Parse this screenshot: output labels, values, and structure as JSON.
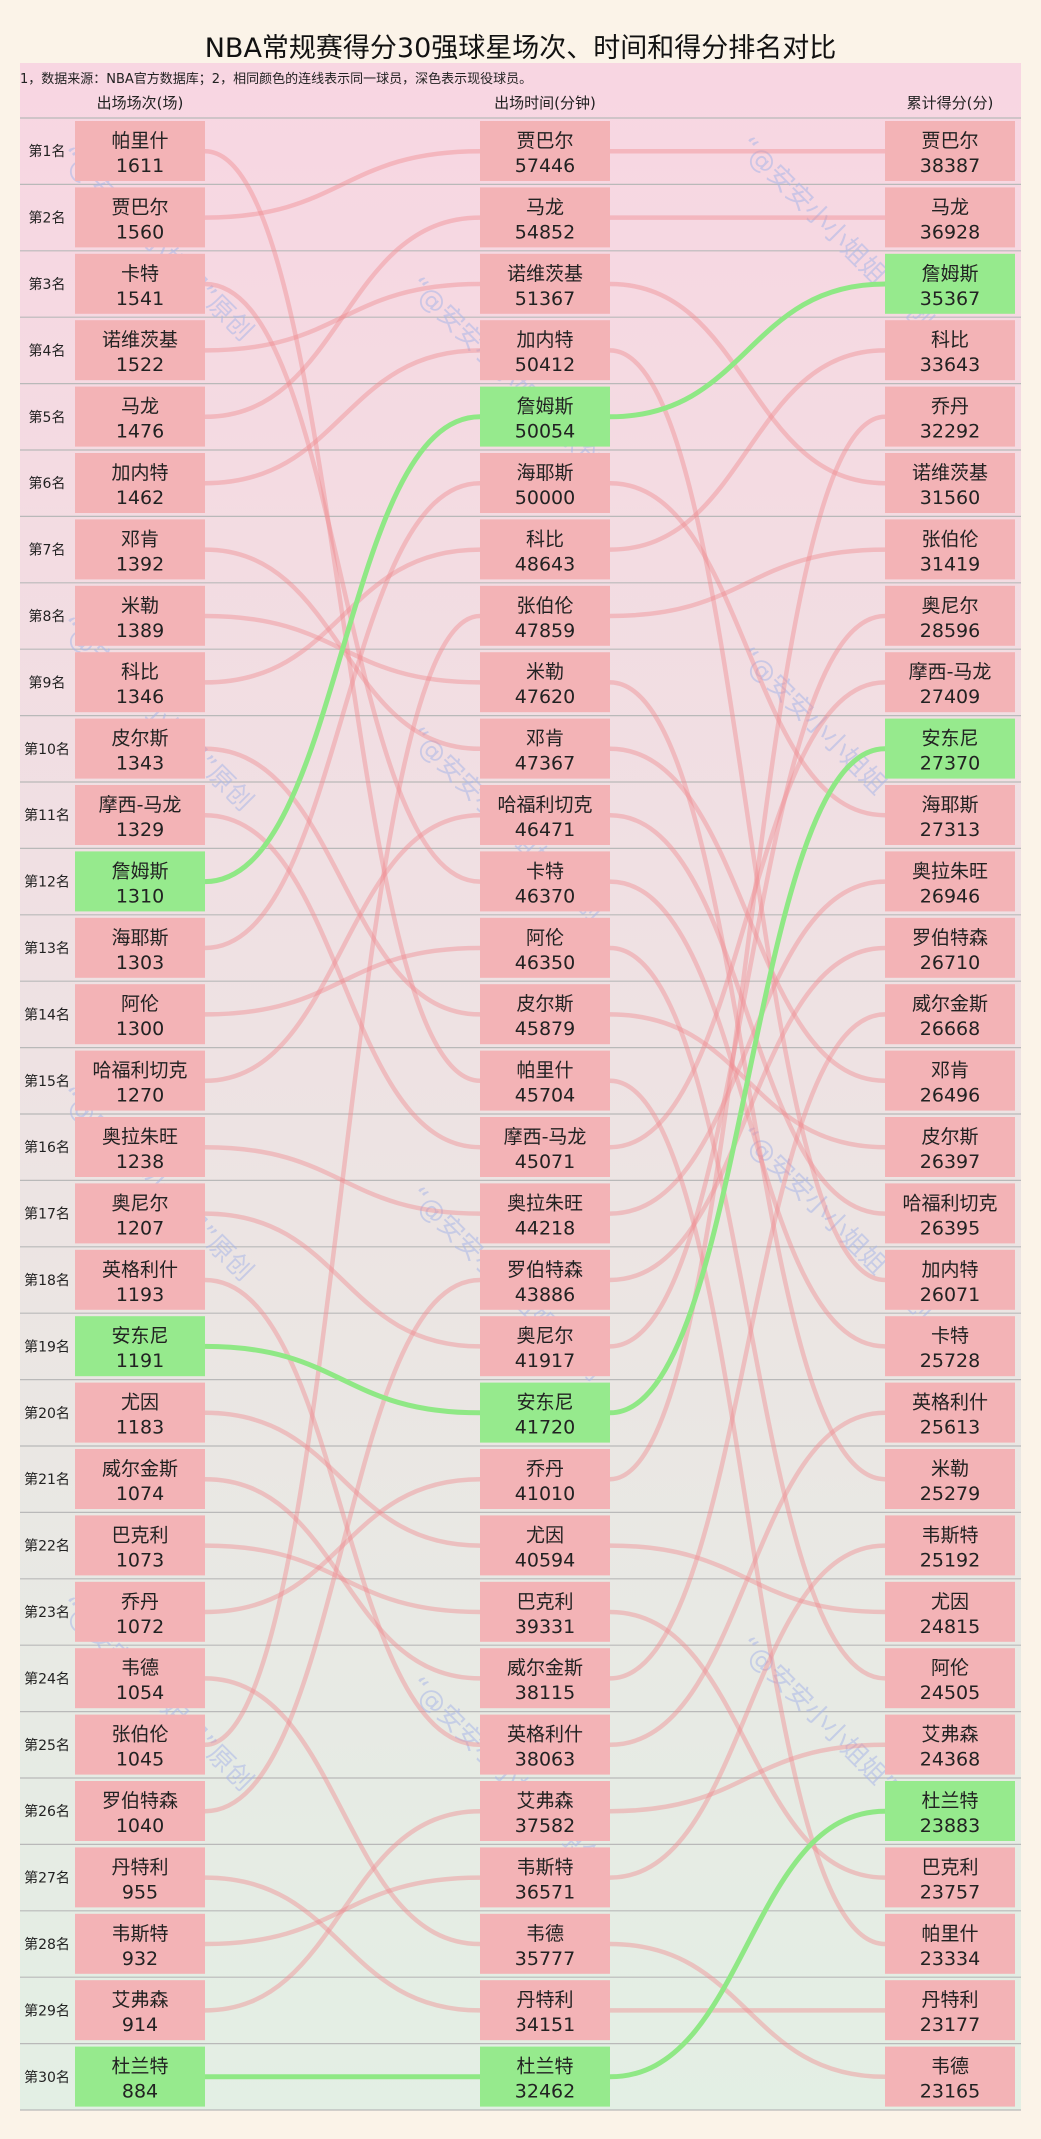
{
  "chart_data": {
    "type": "slope-ranking",
    "title": "NBA常规赛得分30强球星场次、时间和得分排名对比",
    "note": "1，数据来源：NBA官方数据库；2，相同颜色的连线表示同一球员，深色表示现役球员。",
    "rank_labels": [
      "第1名",
      "第2名",
      "第3名",
      "第4名",
      "第5名",
      "第6名",
      "第7名",
      "第8名",
      "第9名",
      "第10名",
      "第11名",
      "第12名",
      "第13名",
      "第14名",
      "第15名",
      "第16名",
      "第17名",
      "第18名",
      "第19名",
      "第20名",
      "第21名",
      "第22名",
      "第23名",
      "第24名",
      "第25名",
      "第26名",
      "第27名",
      "第28名",
      "第29名",
      "第30名"
    ],
    "watermark": "“@安安小小姐姐”原创",
    "colors": {
      "retired_box": "#f3b3b6",
      "active_box": "#96ea8d",
      "retired_line": "#ef8d92",
      "active_line": "#8fe885"
    },
    "columns": [
      {
        "header": "出场场次(场)",
        "entries": [
          {
            "name": "帕里什",
            "value": 1611
          },
          {
            "name": "贾巴尔",
            "value": 1560
          },
          {
            "name": "卡特",
            "value": 1541
          },
          {
            "name": "诺维茨基",
            "value": 1522
          },
          {
            "name": "马龙",
            "value": 1476
          },
          {
            "name": "加内特",
            "value": 1462
          },
          {
            "name": "邓肯",
            "value": 1392
          },
          {
            "name": "米勒",
            "value": 1389
          },
          {
            "name": "科比",
            "value": 1346
          },
          {
            "name": "皮尔斯",
            "value": 1343
          },
          {
            "name": "摩西-马龙",
            "value": 1329
          },
          {
            "name": "詹姆斯",
            "value": 1310,
            "active": true
          },
          {
            "name": "海耶斯",
            "value": 1303
          },
          {
            "name": "阿伦",
            "value": 1300
          },
          {
            "name": "哈福利切克",
            "value": 1270
          },
          {
            "name": "奥拉朱旺",
            "value": 1238
          },
          {
            "name": "奥尼尔",
            "value": 1207
          },
          {
            "name": "英格利什",
            "value": 1193
          },
          {
            "name": "安东尼",
            "value": 1191,
            "active": true
          },
          {
            "name": "尤因",
            "value": 1183
          },
          {
            "name": "威尔金斯",
            "value": 1074
          },
          {
            "name": "巴克利",
            "value": 1073
          },
          {
            "name": "乔丹",
            "value": 1072
          },
          {
            "name": "韦德",
            "value": 1054
          },
          {
            "name": "张伯伦",
            "value": 1045
          },
          {
            "name": "罗伯特森",
            "value": 1040
          },
          {
            "name": "丹特利",
            "value": 955
          },
          {
            "name": "韦斯特",
            "value": 932
          },
          {
            "name": "艾弗森",
            "value": 914
          },
          {
            "name": "杜兰特",
            "value": 884,
            "active": true
          }
        ]
      },
      {
        "header": "出场时间(分钟)",
        "entries": [
          {
            "name": "贾巴尔",
            "value": 57446
          },
          {
            "name": "马龙",
            "value": 54852
          },
          {
            "name": "诺维茨基",
            "value": 51367
          },
          {
            "name": "加内特",
            "value": 50412
          },
          {
            "name": "詹姆斯",
            "value": 50054,
            "active": true
          },
          {
            "name": "海耶斯",
            "value": 50000
          },
          {
            "name": "科比",
            "value": 48643
          },
          {
            "name": "张伯伦",
            "value": 47859
          },
          {
            "name": "米勒",
            "value": 47620
          },
          {
            "name": "邓肯",
            "value": 47367
          },
          {
            "name": "哈福利切克",
            "value": 46471
          },
          {
            "name": "卡特",
            "value": 46370
          },
          {
            "name": "阿伦",
            "value": 46350
          },
          {
            "name": "皮尔斯",
            "value": 45879
          },
          {
            "name": "帕里什",
            "value": 45704
          },
          {
            "name": "摩西-马龙",
            "value": 45071
          },
          {
            "name": "奥拉朱旺",
            "value": 44218
          },
          {
            "name": "罗伯特森",
            "value": 43886
          },
          {
            "name": "奥尼尔",
            "value": 41917
          },
          {
            "name": "安东尼",
            "value": 41720,
            "active": true
          },
          {
            "name": "乔丹",
            "value": 41010
          },
          {
            "name": "尤因",
            "value": 40594
          },
          {
            "name": "巴克利",
            "value": 39331
          },
          {
            "name": "威尔金斯",
            "value": 38115
          },
          {
            "name": "英格利什",
            "value": 38063
          },
          {
            "name": "艾弗森",
            "value": 37582
          },
          {
            "name": "韦斯特",
            "value": 36571
          },
          {
            "name": "韦德",
            "value": 35777
          },
          {
            "name": "丹特利",
            "value": 34151
          },
          {
            "name": "杜兰特",
            "value": 32462,
            "active": true
          }
        ]
      },
      {
        "header": "累计得分(分)",
        "entries": [
          {
            "name": "贾巴尔",
            "value": 38387
          },
          {
            "name": "马龙",
            "value": 36928
          },
          {
            "name": "詹姆斯",
            "value": 35367,
            "active": true
          },
          {
            "name": "科比",
            "value": 33643
          },
          {
            "name": "乔丹",
            "value": 32292
          },
          {
            "name": "诺维茨基",
            "value": 31560
          },
          {
            "name": "张伯伦",
            "value": 31419
          },
          {
            "name": "奥尼尔",
            "value": 28596
          },
          {
            "name": "摩西-马龙",
            "value": 27409
          },
          {
            "name": "安东尼",
            "value": 27370,
            "active": true
          },
          {
            "name": "海耶斯",
            "value": 27313
          },
          {
            "name": "奥拉朱旺",
            "value": 26946
          },
          {
            "name": "罗伯特森",
            "value": 26710
          },
          {
            "name": "威尔金斯",
            "value": 26668
          },
          {
            "name": "邓肯",
            "value": 26496
          },
          {
            "name": "皮尔斯",
            "value": 26397
          },
          {
            "name": "哈福利切克",
            "value": 26395
          },
          {
            "name": "加内特",
            "value": 26071
          },
          {
            "name": "卡特",
            "value": 25728
          },
          {
            "name": "英格利什",
            "value": 25613
          },
          {
            "name": "米勒",
            "value": 25279
          },
          {
            "name": "韦斯特",
            "value": 25192
          },
          {
            "name": "尤因",
            "value": 24815
          },
          {
            "name": "阿伦",
            "value": 24505
          },
          {
            "name": "艾弗森",
            "value": 24368
          },
          {
            "name": "杜兰特",
            "value": 23883,
            "active": true
          },
          {
            "name": "巴克利",
            "value": 23757
          },
          {
            "name": "帕里什",
            "value": 23334
          },
          {
            "name": "丹特利",
            "value": 23177
          },
          {
            "name": "韦德",
            "value": 23165
          }
        ]
      }
    ]
  }
}
